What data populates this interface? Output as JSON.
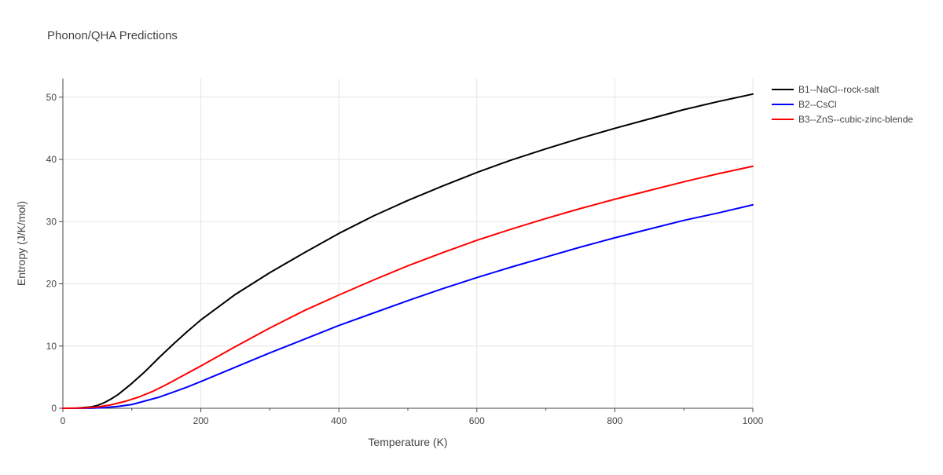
{
  "chart_data": {
    "type": "line",
    "title": "Phonon/QHA Predictions",
    "xlabel": "Temperature (K)",
    "ylabel": "Entropy (J/K/mol)",
    "xlim": [
      0,
      1000
    ],
    "ylim": [
      0,
      53
    ],
    "x_ticks": [
      0,
      200,
      400,
      600,
      800,
      1000
    ],
    "y_ticks": [
      0,
      10,
      20,
      30,
      40,
      50
    ],
    "x_minor_ticks": [
      100,
      300,
      500,
      700,
      900
    ],
    "grid": true,
    "legend_position": "top-right",
    "series": [
      {
        "name": "B1--NaCl--rock-salt",
        "color": "#000000",
        "points": [
          [
            0,
            0
          ],
          [
            20,
            0.02
          ],
          [
            40,
            0.2
          ],
          [
            50,
            0.45
          ],
          [
            60,
            0.9
          ],
          [
            70,
            1.5
          ],
          [
            80,
            2.2
          ],
          [
            100,
            4
          ],
          [
            120,
            6
          ],
          [
            140,
            8.2
          ],
          [
            160,
            10.3
          ],
          [
            180,
            12.3
          ],
          [
            200,
            14.2
          ],
          [
            250,
            18.3
          ],
          [
            300,
            21.8
          ],
          [
            350,
            25
          ],
          [
            400,
            28.1
          ],
          [
            450,
            30.9
          ],
          [
            500,
            33.4
          ],
          [
            550,
            35.7
          ],
          [
            600,
            37.9
          ],
          [
            650,
            39.9
          ],
          [
            700,
            41.7
          ],
          [
            750,
            43.4
          ],
          [
            800,
            45
          ],
          [
            850,
            46.5
          ],
          [
            900,
            48
          ],
          [
            950,
            49.3
          ],
          [
            1000,
            50.5
          ]
        ]
      },
      {
        "name": "B2--CsCl",
        "color": "#0000ff",
        "points": [
          [
            0,
            0
          ],
          [
            40,
            0.02
          ],
          [
            60,
            0.1
          ],
          [
            80,
            0.3
          ],
          [
            100,
            0.6
          ],
          [
            120,
            1.2
          ],
          [
            140,
            1.8
          ],
          [
            160,
            2.6
          ],
          [
            180,
            3.4
          ],
          [
            200,
            4.3
          ],
          [
            250,
            6.6
          ],
          [
            300,
            8.9
          ],
          [
            350,
            11.1
          ],
          [
            400,
            13.3
          ],
          [
            450,
            15.3
          ],
          [
            500,
            17.3
          ],
          [
            550,
            19.2
          ],
          [
            600,
            21
          ],
          [
            650,
            22.7
          ],
          [
            700,
            24.3
          ],
          [
            750,
            25.9
          ],
          [
            800,
            27.4
          ],
          [
            850,
            28.8
          ],
          [
            900,
            30.2
          ],
          [
            950,
            31.4
          ],
          [
            1000,
            32.7
          ]
        ]
      },
      {
        "name": "B3--ZnS--cubic-zinc-blende",
        "color": "#ff0000",
        "points": [
          [
            0,
            0
          ],
          [
            30,
            0.05
          ],
          [
            50,
            0.2
          ],
          [
            70,
            0.55
          ],
          [
            90,
            1.1
          ],
          [
            110,
            1.8
          ],
          [
            130,
            2.7
          ],
          [
            150,
            3.8
          ],
          [
            175,
            5.3
          ],
          [
            200,
            6.8
          ],
          [
            250,
            9.9
          ],
          [
            300,
            12.9
          ],
          [
            350,
            15.7
          ],
          [
            400,
            18.2
          ],
          [
            450,
            20.6
          ],
          [
            500,
            22.9
          ],
          [
            550,
            25
          ],
          [
            600,
            27
          ],
          [
            650,
            28.8
          ],
          [
            700,
            30.5
          ],
          [
            750,
            32.1
          ],
          [
            800,
            33.6
          ],
          [
            850,
            35
          ],
          [
            900,
            36.4
          ],
          [
            950,
            37.7
          ],
          [
            1000,
            38.9
          ]
        ]
      }
    ]
  }
}
